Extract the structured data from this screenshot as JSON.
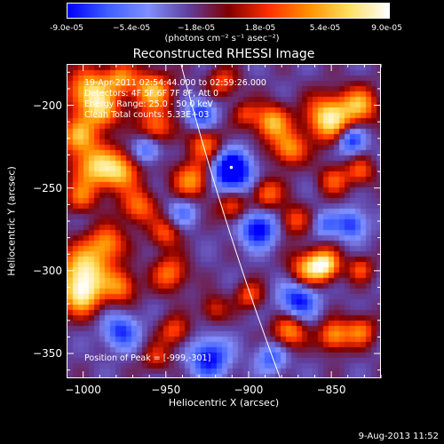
{
  "colorbar": {
    "ticks": [
      "-9.0e-05",
      "−5.4e-05",
      "−1.8e-05",
      "1.8e-05",
      "5.4e-05",
      "9.0e-05"
    ],
    "units": "(photons cm⁻² s⁻¹ asec⁻²)"
  },
  "title": "Reconstructed RHESSI Image",
  "info": {
    "time": "19-Apr-2011 02:54:44.000 to 02:59:26.000",
    "detectors": "Detectors: 4F 5F 6F 7F 8F, Att 0",
    "energy": "Energy Range: 25.0 - 50.0 keV",
    "clean": "Clean     Total counts: 5.33E+03"
  },
  "peak_label": "Position of Peak = [-999,-301]",
  "axes": {
    "xlabel": "Heliocentric X (arcsec)",
    "ylabel": "Heliocentric Y (arcsec)",
    "xlim": [
      -1010,
      -820
    ],
    "ylim": [
      -365,
      -175
    ],
    "xticks": [
      -1000,
      -950,
      -900,
      -850
    ],
    "yticks": [
      -200,
      -250,
      -300,
      -350
    ],
    "xtick_labels": [
      "−1000",
      "−950",
      "−900",
      "−850"
    ],
    "ytick_labels": [
      "−200",
      "−250",
      "−300",
      "−350"
    ]
  },
  "map": {
    "colormap": [
      "#0000ff",
      "#4060ff",
      "#8090ff",
      "#6040a0",
      "#800000",
      "#ff3000",
      "#ff9000",
      "#ffe060",
      "#ffffff"
    ],
    "min_marker": {
      "x": -911,
      "y": -237
    }
  },
  "footer": "9-Aug-2013 11:52"
}
